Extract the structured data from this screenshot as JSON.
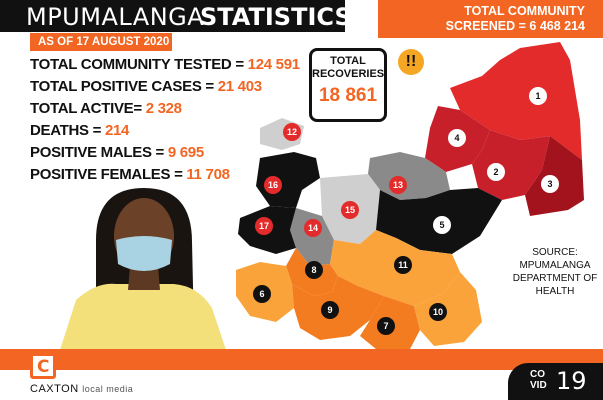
{
  "header": {
    "title_light": "MPUMALANGA",
    "title_bold": "STATISTICS",
    "date": "AS OF 17 AUGUST 2020",
    "screened_label_1": "TOTAL COMMUNITY",
    "screened_label_2": "SCREENED =",
    "screened_value": "6 468 214"
  },
  "stats": [
    {
      "label": "TOTAL COMMUNITY TESTED = ",
      "value": "124 591"
    },
    {
      "label": "TOTAL POSITIVE CASES = ",
      "value": "21 403"
    },
    {
      "label": "TOTAL ACTIVE= ",
      "value": "2 328"
    },
    {
      "label": "DEATHS = ",
      "value": "214"
    },
    {
      "label": "POSITIVE MALES = ",
      "value": "9 695"
    },
    {
      "label": "POSITIVE FEMALES = ",
      "value": "11 708"
    }
  ],
  "recoveries": {
    "label_1": "TOTAL",
    "label_2": "RECOVERIES",
    "value": "18 861",
    "badge": "!!"
  },
  "source": {
    "line1": "SOURCE:",
    "line2": "MPUMALANGA",
    "line3": "DEPARTMENT OF",
    "line4": "HEALTH"
  },
  "map": {
    "regions": [
      "1",
      "2",
      "3",
      "4",
      "5",
      "6",
      "7",
      "8",
      "9",
      "10",
      "11",
      "12",
      "13",
      "14",
      "15",
      "16",
      "17"
    ]
  },
  "footer": {
    "logo_letter": "C",
    "brand": "CAXTON",
    "brand_sub": "local media",
    "covid_word_1": "CO",
    "covid_word_2": "VID",
    "covid_number": "19"
  },
  "colors": {
    "accent": "#f26522",
    "dark": "#111111",
    "red": "#e32b2b",
    "dark_red": "#a3131d",
    "orange": "#f47c20",
    "light_orange": "#f9a33a",
    "grey": "#8a8a8a",
    "light_grey": "#cfcfcf"
  }
}
